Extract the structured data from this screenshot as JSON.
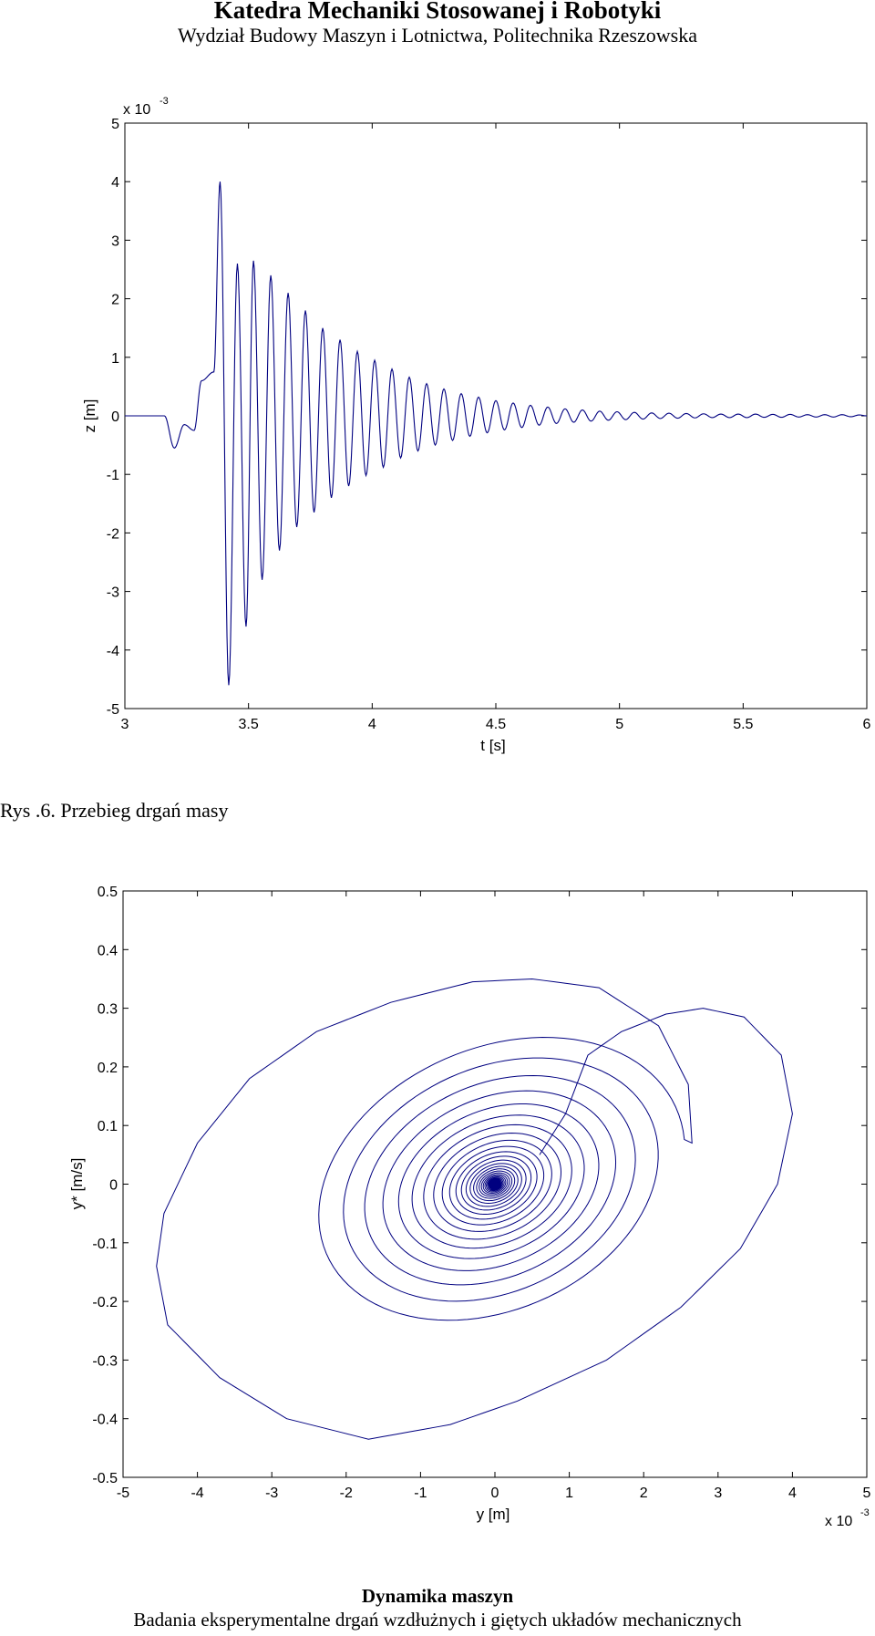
{
  "header": {
    "title": "Katedra Mechaniki Stosowanej i Robotyki",
    "subtitle": "Wydział Budowy Maszyn i Lotnictwa, Politechnika Rzeszowska"
  },
  "figure_caption": "Rys .6. Przebieg drgań masy",
  "footer": {
    "title": "Dynamika maszyn",
    "subtitle": "Badania eksperymentalne drgań wzdłużnych i giętych układów mechanicznych"
  },
  "colors": {
    "trace": "#000080",
    "axis": "#000000"
  },
  "chart_data": [
    {
      "type": "line",
      "xlabel": "t [s]",
      "ylabel": "z [m]",
      "exponent_label": "x 10",
      "exponent_power": "-3",
      "xlim": [
        3,
        6
      ],
      "ylim": [
        -5,
        5
      ],
      "xticks": [
        "3",
        "3.5",
        "4",
        "4.5",
        "5",
        "5.5",
        "6"
      ],
      "yticks": [
        "5",
        "4",
        "3",
        "2",
        "1",
        "0",
        "-1",
        "-2",
        "-3",
        "-4",
        "-5"
      ],
      "grid": false,
      "y_scale_factor": "1e-3",
      "points": [
        [
          3.0,
          0
        ],
        [
          3.16,
          0
        ],
        [
          3.2,
          -0.55
        ],
        [
          3.24,
          -0.15
        ],
        [
          3.28,
          -0.25
        ],
        [
          3.31,
          0.6
        ],
        [
          3.36,
          0.75
        ],
        [
          3.385,
          4.0
        ],
        [
          3.42,
          -4.6
        ],
        [
          3.455,
          2.6
        ],
        [
          3.49,
          -3.6
        ],
        [
          3.52,
          2.65
        ],
        [
          3.555,
          -2.8
        ],
        [
          3.59,
          2.4
        ],
        [
          3.625,
          -2.3
        ],
        [
          3.66,
          2.1
        ],
        [
          3.695,
          -1.9
        ],
        [
          3.73,
          1.8
        ],
        [
          3.765,
          -1.65
        ],
        [
          3.8,
          1.5
        ],
        [
          3.835,
          -1.4
        ],
        [
          3.87,
          1.3
        ],
        [
          3.905,
          -1.2
        ],
        [
          3.94,
          1.1
        ],
        [
          3.975,
          -1.02
        ],
        [
          4.01,
          0.95
        ],
        [
          4.045,
          -0.88
        ],
        [
          4.08,
          0.8
        ],
        [
          4.115,
          -0.72
        ],
        [
          4.15,
          0.66
        ],
        [
          4.185,
          -0.6
        ],
        [
          4.22,
          0.55
        ],
        [
          4.255,
          -0.5
        ],
        [
          4.29,
          0.46
        ],
        [
          4.325,
          -0.42
        ],
        [
          4.36,
          0.38
        ],
        [
          4.395,
          -0.35
        ],
        [
          4.43,
          0.32
        ],
        [
          4.465,
          -0.29
        ],
        [
          4.5,
          0.26
        ],
        [
          4.535,
          -0.24
        ],
        [
          4.57,
          0.22
        ],
        [
          4.605,
          -0.2
        ],
        [
          4.64,
          0.18
        ],
        [
          4.675,
          -0.16
        ],
        [
          4.71,
          0.15
        ],
        [
          4.745,
          -0.13
        ],
        [
          4.78,
          0.12
        ],
        [
          4.815,
          -0.11
        ],
        [
          4.85,
          0.1
        ],
        [
          4.885,
          -0.09
        ],
        [
          4.92,
          0.08
        ],
        [
          4.955,
          -0.075
        ],
        [
          4.99,
          0.07
        ],
        [
          5.025,
          -0.065
        ],
        [
          5.06,
          0.06
        ],
        [
          5.095,
          -0.055
        ],
        [
          5.13,
          0.05
        ],
        [
          5.165,
          -0.045
        ],
        [
          5.2,
          0.045
        ],
        [
          5.235,
          -0.04
        ],
        [
          5.27,
          0.04
        ],
        [
          5.305,
          -0.035
        ],
        [
          5.34,
          0.035
        ],
        [
          5.375,
          -0.03
        ],
        [
          5.41,
          0.03
        ],
        [
          5.445,
          -0.03
        ],
        [
          5.48,
          0.03
        ],
        [
          5.515,
          -0.03
        ],
        [
          5.55,
          0.03
        ],
        [
          5.585,
          -0.025
        ],
        [
          5.62,
          0.025
        ],
        [
          5.655,
          -0.025
        ],
        [
          5.69,
          0.025
        ],
        [
          5.725,
          -0.02
        ],
        [
          5.76,
          0.02
        ],
        [
          5.795,
          -0.02
        ],
        [
          5.83,
          0.02
        ],
        [
          5.865,
          -0.02
        ],
        [
          5.9,
          0.02
        ],
        [
          5.935,
          -0.015
        ],
        [
          5.97,
          0.015
        ],
        [
          6.0,
          0
        ]
      ]
    },
    {
      "type": "line",
      "xlabel": "y [m]",
      "ylabel": "y* [m/s]",
      "exponent_label": "x 10",
      "exponent_power": "-3",
      "xlim": [
        -5,
        5
      ],
      "ylim": [
        -0.5,
        0.5
      ],
      "xticks": [
        "-5",
        "-4",
        "-3",
        "-2",
        "-1",
        "0",
        "1",
        "2",
        "3",
        "4",
        "5"
      ],
      "yticks": [
        "0.5",
        "0.4",
        "0.3",
        "0.2",
        "0.1",
        "0",
        "-0.1",
        "-0.2",
        "-0.3",
        "-0.4",
        "-0.5"
      ],
      "grid": false,
      "x_scale_factor": "1e-3",
      "start_point": [
        0.6,
        0.05
      ],
      "path_points": [
        [
          0.6,
          0.05
        ],
        [
          0.95,
          0.12
        ],
        [
          1.25,
          0.22
        ],
        [
          1.7,
          0.26
        ],
        [
          2.3,
          0.29
        ],
        [
          2.8,
          0.3
        ],
        [
          3.35,
          0.285
        ],
        [
          3.85,
          0.22
        ],
        [
          4.0,
          0.12
        ],
        [
          3.8,
          0.0
        ],
        [
          3.3,
          -0.11
        ],
        [
          2.5,
          -0.21
        ],
        [
          1.5,
          -0.3
        ],
        [
          0.3,
          -0.37
        ],
        [
          -0.6,
          -0.41
        ],
        [
          -1.7,
          -0.435
        ],
        [
          -2.8,
          -0.4
        ],
        [
          -3.7,
          -0.33
        ],
        [
          -4.4,
          -0.24
        ],
        [
          -4.55,
          -0.14
        ],
        [
          -4.45,
          -0.05
        ],
        [
          -4.0,
          0.07
        ],
        [
          -3.3,
          0.18
        ],
        [
          -2.4,
          0.26
        ],
        [
          -1.4,
          0.31
        ],
        [
          -0.3,
          0.345
        ],
        [
          0.5,
          0.35
        ],
        [
          1.4,
          0.335
        ],
        [
          2.2,
          0.27
        ],
        [
          2.6,
          0.17
        ],
        [
          2.65,
          0.07
        ]
      ],
      "spiral_center": [
        0.0,
        0.0
      ],
      "spiral_decay": 0.86
    }
  ]
}
